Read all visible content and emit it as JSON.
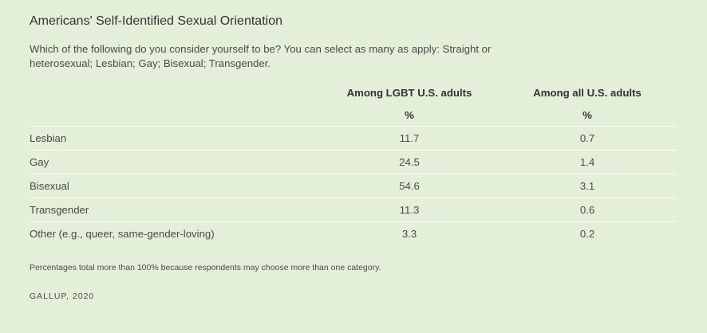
{
  "title": "Americans' Self-Identified Sexual Orientation",
  "question": "Which of the following do you consider yourself to be? You can select as many as apply: Straight or heterosexual; Lesbian; Gay; Bisexual; Transgender.",
  "chart_data": {
    "type": "table",
    "columns": [
      "Among LGBT U.S. adults",
      "Among all U.S. adults"
    ],
    "units": [
      "%",
      "%"
    ],
    "rows": [
      {
        "label": "Lesbian",
        "values": [
          "11.7",
          "0.7"
        ]
      },
      {
        "label": "Gay",
        "values": [
          "24.5",
          "1.4"
        ]
      },
      {
        "label": "Bisexual",
        "values": [
          "54.6",
          "3.1"
        ]
      },
      {
        "label": "Transgender",
        "values": [
          "11.3",
          "0.6"
        ]
      },
      {
        "label": "Other (e.g., queer, same-gender-loving)",
        "values": [
          "3.3",
          "0.2"
        ]
      }
    ]
  },
  "note": "Percentages total more than 100% because respondents may choose more than one category.",
  "source": "GALLUP, 2020"
}
